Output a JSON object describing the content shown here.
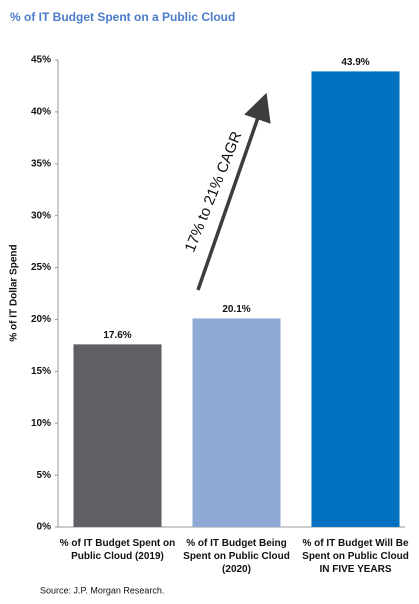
{
  "chart_data": {
    "type": "bar",
    "title": "% of IT Budget Spent on a Public Cloud",
    "y_label": "% of IT Dollar Spend",
    "categories": [
      "% of IT Budget Spent on Public Cloud (2019)",
      "% of IT Budget Being Spent on Public Cloud (2020)",
      "% of IT Budget Will Be Spent on Public Cloud IN FIVE YEARS"
    ],
    "values": [
      17.6,
      20.1,
      43.9
    ],
    "value_labels": [
      "17.6%",
      "20.1%",
      "43.9%"
    ],
    "colors": [
      "#5f5f66",
      "#8faad4",
      "#0070c0"
    ],
    "ylim": [
      0,
      45
    ],
    "yticks": [
      {
        "value": 0,
        "label": "0%"
      },
      {
        "value": 5,
        "label": "5%"
      },
      {
        "value": 10,
        "label": "10%"
      },
      {
        "value": 15,
        "label": "15%"
      },
      {
        "value": 20,
        "label": "20%"
      },
      {
        "value": 25,
        "label": "25%"
      },
      {
        "value": 30,
        "label": "30%"
      },
      {
        "value": 35,
        "label": "35%"
      },
      {
        "value": 40,
        "label": "40%"
      },
      {
        "value": 45,
        "label": "45%"
      }
    ],
    "annotation": "17% to 21% CAGR",
    "source": "Source: J.P. Morgan Research."
  }
}
